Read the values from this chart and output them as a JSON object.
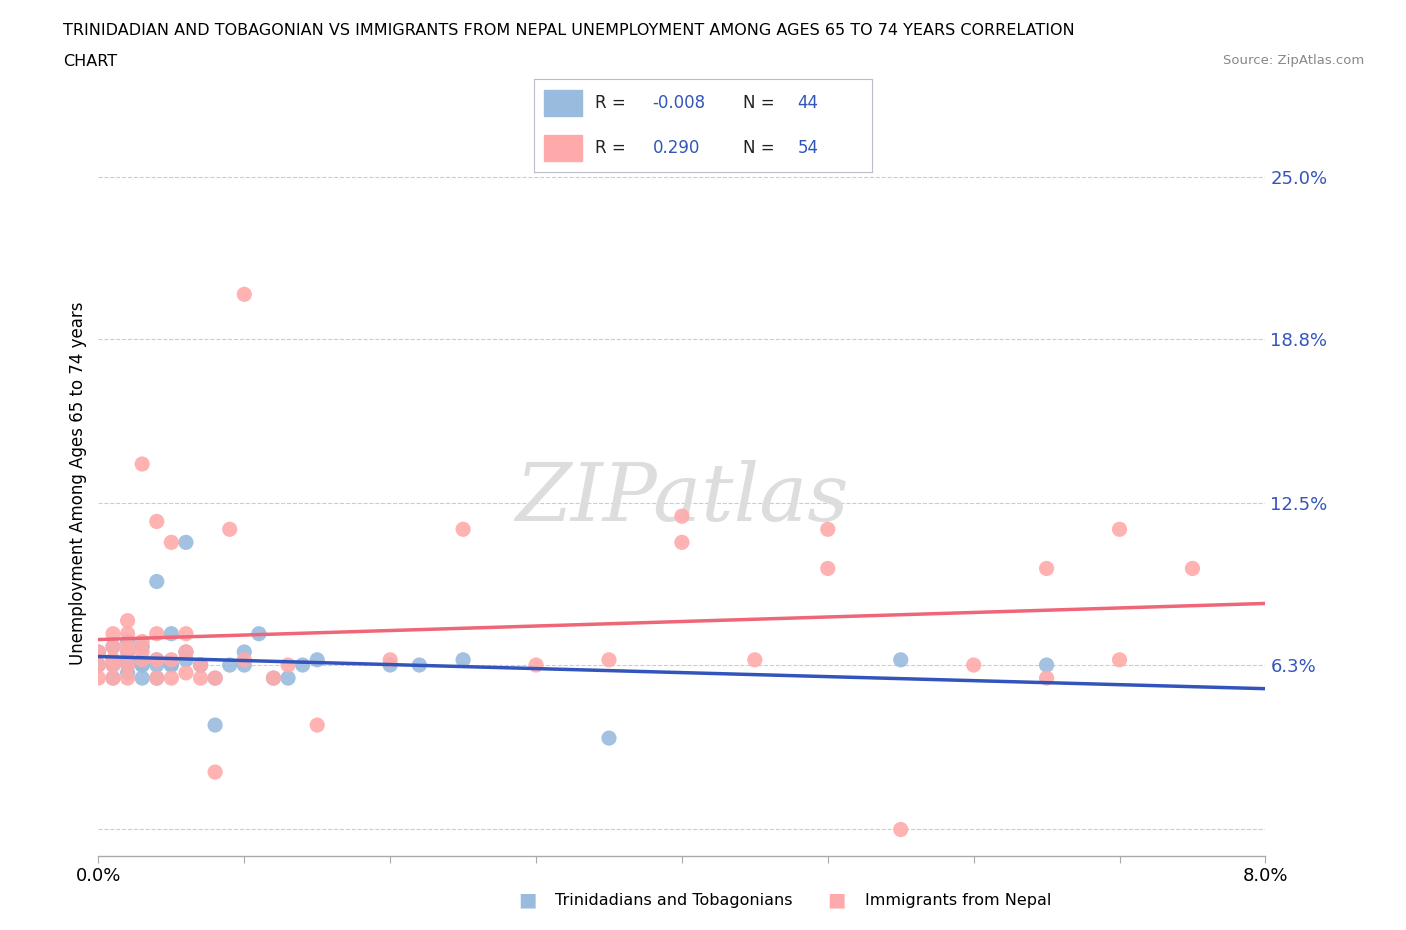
{
  "title_line1": "TRINIDADIAN AND TOBAGONIAN VS IMMIGRANTS FROM NEPAL UNEMPLOYMENT AMONG AGES 65 TO 74 YEARS CORRELATION",
  "title_line2": "CHART",
  "source": "Source: ZipAtlas.com",
  "ylabel": "Unemployment Among Ages 65 to 74 years",
  "xlim": [
    0.0,
    0.08
  ],
  "ylim": [
    -0.01,
    0.275
  ],
  "yticks": [
    0.0,
    0.063,
    0.125,
    0.188,
    0.25
  ],
  "ytick_labels": [
    "",
    "6.3%",
    "12.5%",
    "18.8%",
    "25.0%"
  ],
  "xticks": [
    0.0,
    0.01,
    0.02,
    0.03,
    0.04,
    0.05,
    0.06,
    0.07,
    0.08
  ],
  "xtick_labels": [
    "0.0%",
    "",
    "",
    "",
    "",
    "",
    "",
    "",
    "8.0%"
  ],
  "grid_color": "#cccccc",
  "background_color": "#ffffff",
  "blue_color": "#99bbdd",
  "pink_color": "#ffaaaa",
  "trend_blue": "#3355bb",
  "trend_pink": "#ee6677",
  "r_blue": "-0.008",
  "n_blue": "44",
  "r_pink": "0.290",
  "n_pink": "54",
  "blue_scatter": [
    [
      0.0,
      0.068
    ],
    [
      0.0,
      0.063
    ],
    [
      0.001,
      0.07
    ],
    [
      0.001,
      0.063
    ],
    [
      0.001,
      0.058
    ],
    [
      0.001,
      0.065
    ],
    [
      0.002,
      0.063
    ],
    [
      0.002,
      0.068
    ],
    [
      0.002,
      0.072
    ],
    [
      0.002,
      0.06
    ],
    [
      0.002,
      0.065
    ],
    [
      0.003,
      0.063
    ],
    [
      0.003,
      0.058
    ],
    [
      0.003,
      0.063
    ],
    [
      0.003,
      0.07
    ],
    [
      0.003,
      0.065
    ],
    [
      0.004,
      0.095
    ],
    [
      0.004,
      0.063
    ],
    [
      0.004,
      0.058
    ],
    [
      0.004,
      0.065
    ],
    [
      0.005,
      0.063
    ],
    [
      0.005,
      0.075
    ],
    [
      0.005,
      0.063
    ],
    [
      0.006,
      0.11
    ],
    [
      0.006,
      0.065
    ],
    [
      0.006,
      0.068
    ],
    [
      0.007,
      0.063
    ],
    [
      0.007,
      0.063
    ],
    [
      0.008,
      0.04
    ],
    [
      0.008,
      0.058
    ],
    [
      0.009,
      0.063
    ],
    [
      0.01,
      0.068
    ],
    [
      0.01,
      0.063
    ],
    [
      0.011,
      0.075
    ],
    [
      0.012,
      0.058
    ],
    [
      0.013,
      0.058
    ],
    [
      0.014,
      0.063
    ],
    [
      0.015,
      0.065
    ],
    [
      0.02,
      0.063
    ],
    [
      0.022,
      0.063
    ],
    [
      0.025,
      0.065
    ],
    [
      0.035,
      0.035
    ],
    [
      0.055,
      0.065
    ],
    [
      0.065,
      0.063
    ]
  ],
  "pink_scatter": [
    [
      0.0,
      0.063
    ],
    [
      0.0,
      0.068
    ],
    [
      0.0,
      0.058
    ],
    [
      0.001,
      0.063
    ],
    [
      0.001,
      0.075
    ],
    [
      0.001,
      0.07
    ],
    [
      0.001,
      0.065
    ],
    [
      0.001,
      0.058
    ],
    [
      0.002,
      0.063
    ],
    [
      0.002,
      0.068
    ],
    [
      0.002,
      0.08
    ],
    [
      0.002,
      0.058
    ],
    [
      0.002,
      0.07
    ],
    [
      0.002,
      0.075
    ],
    [
      0.003,
      0.065
    ],
    [
      0.003,
      0.068
    ],
    [
      0.003,
      0.072
    ],
    [
      0.003,
      0.14
    ],
    [
      0.004,
      0.065
    ],
    [
      0.004,
      0.075
    ],
    [
      0.004,
      0.118
    ],
    [
      0.004,
      0.058
    ],
    [
      0.005,
      0.065
    ],
    [
      0.005,
      0.058
    ],
    [
      0.005,
      0.11
    ],
    [
      0.006,
      0.068
    ],
    [
      0.006,
      0.06
    ],
    [
      0.006,
      0.075
    ],
    [
      0.007,
      0.058
    ],
    [
      0.007,
      0.063
    ],
    [
      0.008,
      0.058
    ],
    [
      0.008,
      0.022
    ],
    [
      0.009,
      0.115
    ],
    [
      0.01,
      0.205
    ],
    [
      0.01,
      0.065
    ],
    [
      0.012,
      0.058
    ],
    [
      0.013,
      0.063
    ],
    [
      0.015,
      0.04
    ],
    [
      0.02,
      0.065
    ],
    [
      0.025,
      0.115
    ],
    [
      0.03,
      0.063
    ],
    [
      0.035,
      0.065
    ],
    [
      0.04,
      0.12
    ],
    [
      0.04,
      0.11
    ],
    [
      0.045,
      0.065
    ],
    [
      0.05,
      0.115
    ],
    [
      0.05,
      0.1
    ],
    [
      0.055,
      0.0
    ],
    [
      0.06,
      0.063
    ],
    [
      0.065,
      0.1
    ],
    [
      0.065,
      0.058
    ],
    [
      0.07,
      0.115
    ],
    [
      0.07,
      0.065
    ],
    [
      0.075,
      0.1
    ]
  ],
  "watermark": "ZIPatlas",
  "legend_r_color": "#3355bb",
  "legend_black": "#222222"
}
